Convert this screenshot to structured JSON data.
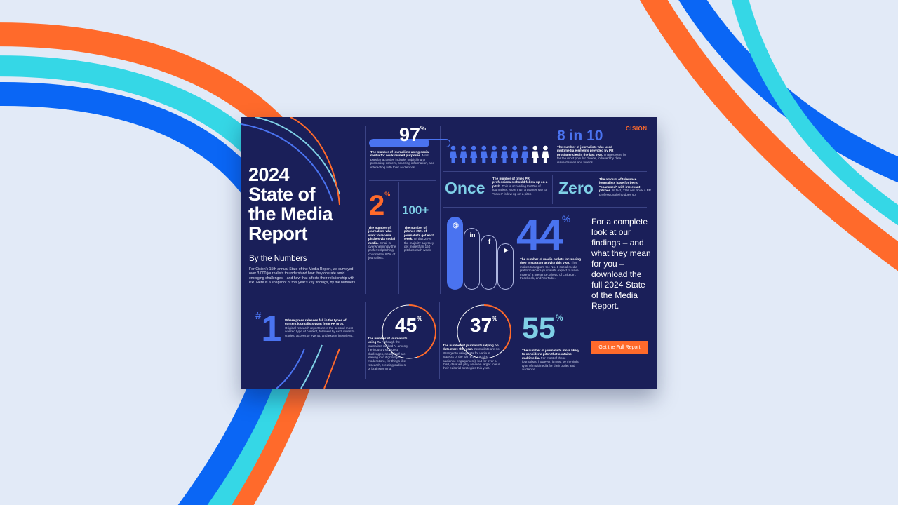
{
  "background": {
    "colors": {
      "orange": "#ff6a2b",
      "cyan": "#35d7e6",
      "blue": "#0a66f5",
      "canvas": "#e2eaf7"
    }
  },
  "report": {
    "brand": {
      "name": "CISION",
      "accent": "#ff6a2b",
      "navy": "#1a1f59"
    },
    "title_lines": [
      "2024",
      "State of",
      "the Media",
      "Report"
    ],
    "subtitle": "By the Numbers",
    "intro": "For Cision's 15th annual State of the Media Report, we surveyed over 3,000 journalists to understand how they operate amid emerging challenges – and how that affects their relationship with PR. Here is a snapshot of this year's key findings, by the numbers.",
    "stats": {
      "s97": {
        "value": "97",
        "unit": "%",
        "bold": "The number of journalists using social media for work-related purposes.",
        "detail": " Most popular activities include: publishing or promoting content, sourcing information, and interacting with their audiences."
      },
      "s2": {
        "value": "2",
        "unit": "%",
        "bold": "The number of journalists who want to receive pitches via social media.",
        "detail": " Email is overwhelmingly the preferred pitching channel for 87% of journalists."
      },
      "s100": {
        "value": "100+",
        "bold": "The number of pitches 25% of journalists get each week.",
        "detail": " Of that 25%, the majority say they get more than 150 pitches each week."
      },
      "s8in10": {
        "value": "8 in 10",
        "bold": "The number of journalists who used multimedia elements provided by PR pros/agencies in the last year.",
        "detail": " Images were by far the most popular choice, followed by data visualizations and videos.",
        "people_total": 10,
        "people_highlighted": 8
      },
      "once": {
        "value": "Once",
        "bold": "The number of times PR professionals should follow up on a pitch.",
        "detail": " This is according to 60% of journalists. More than a quarter say to \"never\" follow up on a pitch."
      },
      "zero": {
        "value": "Zero",
        "bold": "The amount of tolerance journalists have for being \"spammed\" with irrelevant pitches.",
        "detail": " In fact, 77% will block a PR professional who does so."
      },
      "s44": {
        "value": "44",
        "unit": "%",
        "bold": "The number of media outlets increasing their Instagram activity this year.",
        "detail": " This makes Instagram the No. 1 social media platform where journalists expect to have more of a presence, ahead of LinkedIn, Facebook, and YouTube.",
        "platforms": [
          "instagram-icon",
          "linkedin-icon",
          "facebook-icon",
          "youtube-icon"
        ]
      },
      "s1": {
        "value": "1",
        "prefix": "#",
        "bold": "Where press releases fall in the types of content journalists want from PR pros.",
        "detail": " Original research reports were the second most wanted type of content, followed by exclusives to stories, access to events, and expert interviews."
      },
      "s45": {
        "value": "45",
        "unit": "%",
        "bold": "The number of journalists using AI.",
        "detail": " Although the journalists ranked AI among the industry's biggest challenges, nearly half are leaning into it (mostly in moderation), for things like research, creating outlines, or brainstorming.",
        "gauge": 0.45
      },
      "s37": {
        "value": "37",
        "unit": "%",
        "bold": "The number of journalists relying on data more this year.",
        "detail": " Journalists are no stranger to using data for various aspects of the job (e.g., tracking audience engagement), but for over a third, data will play an even larger role in their editorial strategies this year.",
        "gauge": 0.37
      },
      "s55": {
        "value": "55",
        "unit": "%",
        "bold": "The number of journalists more likely to consider a pitch that contains multimedia.",
        "detail": " For most of those journalists, however, it must be the right type of multimedia for their outlet and audience."
      }
    },
    "cta": {
      "text": "For a complete look at our findings – and what they mean for you – download the full 2024 State of the Media Report.",
      "button": "Get the Full Report"
    }
  }
}
